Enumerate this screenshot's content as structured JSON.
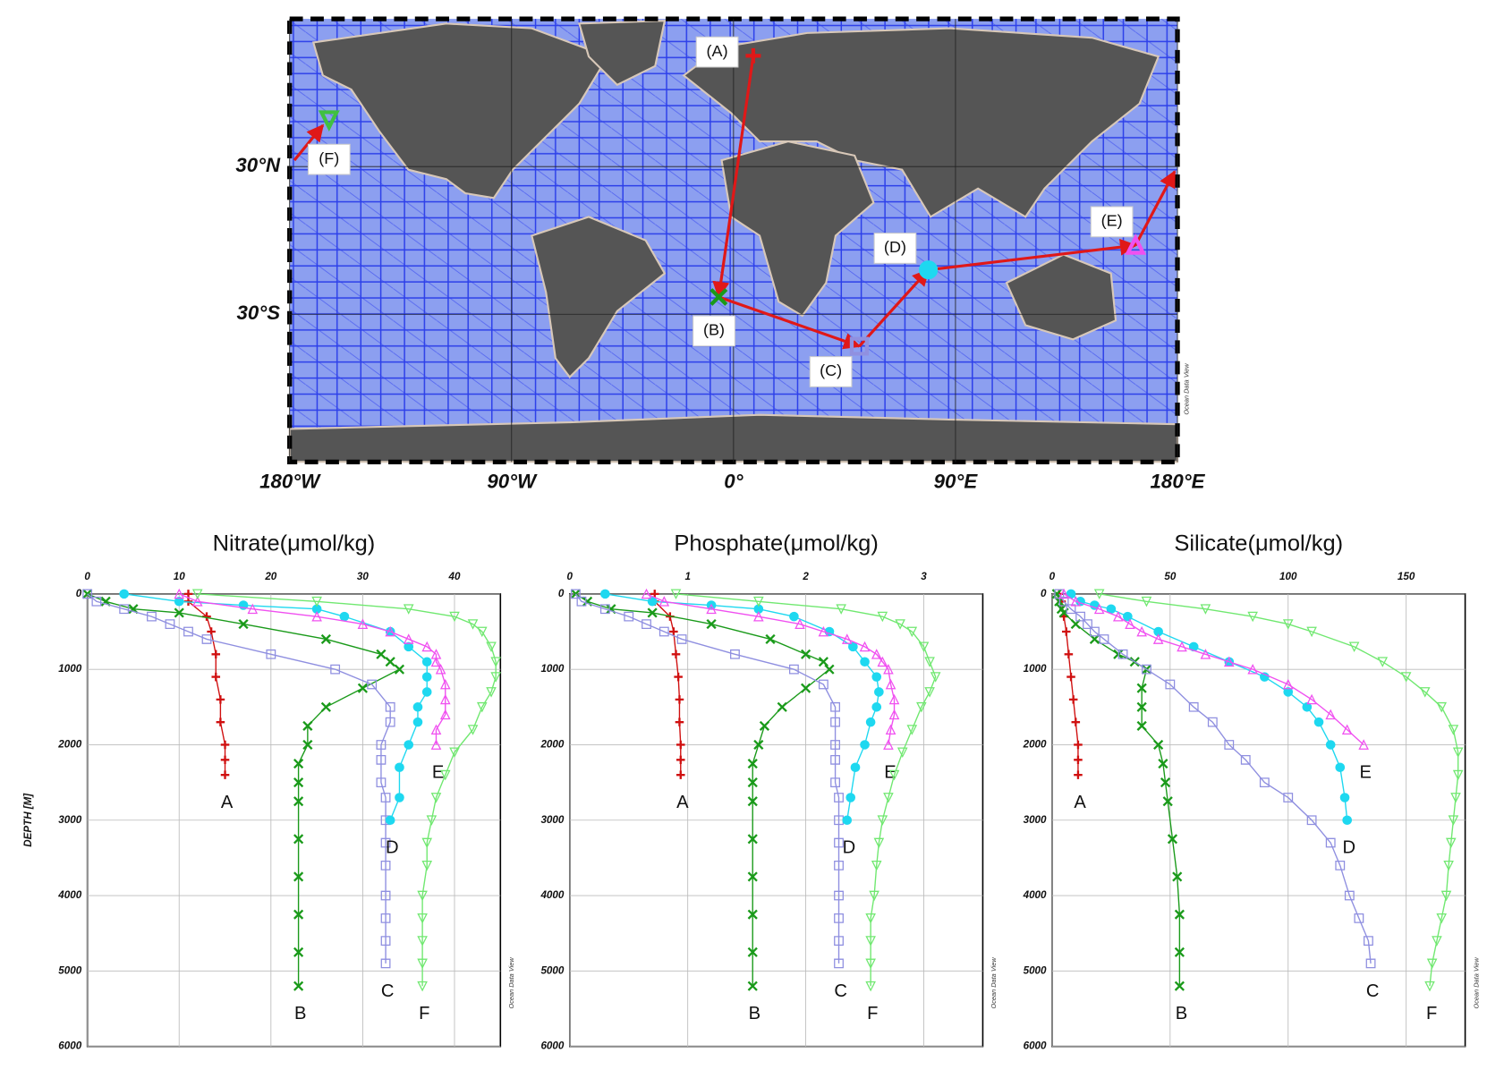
{
  "map": {
    "xlim": [
      -180,
      180
    ],
    "ylim": [
      -90,
      90
    ],
    "lon_ticks": [
      {
        "value": -180,
        "label": "180°W"
      },
      {
        "value": -90,
        "label": "90°W"
      },
      {
        "value": 0,
        "label": "0°"
      },
      {
        "value": 90,
        "label": "90°E"
      },
      {
        "value": 180,
        "label": "180°E"
      }
    ],
    "lat_ticks": [
      {
        "value": 30,
        "label": "30°N"
      },
      {
        "value": -30,
        "label": "30°S"
      }
    ],
    "watermark": "Ocean Data View",
    "stations": [
      {
        "label": "(A)",
        "lon": 8,
        "lat": 75,
        "color": "#e01818",
        "marker": "plus"
      },
      {
        "label": "(B)",
        "lon": -6,
        "lat": -23,
        "color": "#1a9a1a",
        "marker": "x"
      },
      {
        "label": "(C)",
        "lon": 51,
        "lat": -43,
        "color": "#9090e0",
        "marker": "square"
      },
      {
        "label": "(D)",
        "lon": 79,
        "lat": -12,
        "color": "#1ed8f0",
        "marker": "circle"
      },
      {
        "label": "(E)",
        "lon": 163,
        "lat": -2,
        "color": "#f050f0",
        "marker": "triangle"
      },
      {
        "label": "(F)",
        "lon": -164,
        "lat": 49,
        "color": "#40c040",
        "marker": "triangle-down"
      }
    ]
  },
  "chart_data": [
    {
      "type": "line",
      "title": "Nitrate(μmol/kg)",
      "xlim": [
        0,
        45
      ],
      "xticks": [
        0,
        10,
        20,
        30,
        40
      ],
      "ylim": [
        0,
        6000
      ],
      "y_inverted": true,
      "yticks": [
        0,
        1000,
        2000,
        3000,
        4000,
        5000,
        6000
      ],
      "ylabel": "DEPTH [M]",
      "grid": true,
      "watermark": "Ocean Data View",
      "series": [
        {
          "name": "A",
          "color": "#d01010",
          "marker": "plus",
          "x": [
            11,
            11,
            13,
            13.5,
            14,
            14,
            14.5,
            14.5,
            15,
            15,
            15
          ],
          "y": [
            0,
            100,
            300,
            500,
            800,
            1100,
            1400,
            1700,
            2000,
            2200,
            2400
          ]
        },
        {
          "name": "B",
          "color": "#1a9a1a",
          "marker": "x",
          "x": [
            0,
            2,
            5,
            10,
            17,
            26,
            32,
            33,
            34,
            30,
            26,
            24,
            24,
            23,
            23,
            23,
            23,
            23,
            23,
            23,
            23
          ],
          "y": [
            0,
            100,
            200,
            250,
            400,
            600,
            800,
            900,
            1000,
            1250,
            1500,
            1750,
            2000,
            2250,
            2500,
            2750,
            3250,
            3750,
            4250,
            4750,
            5200
          ]
        },
        {
          "name": "C",
          "color": "#8f8fe0",
          "marker": "square",
          "x": [
            0,
            1,
            4,
            7,
            9,
            11,
            13,
            20,
            27,
            31,
            33,
            33,
            32,
            32,
            32,
            32.5,
            32.5,
            32.5,
            32.5,
            32.5,
            32.5,
            32.5,
            32.5
          ],
          "y": [
            0,
            100,
            200,
            300,
            400,
            500,
            600,
            800,
            1000,
            1200,
            1500,
            1700,
            2000,
            2200,
            2500,
            2700,
            3000,
            3300,
            3600,
            4000,
            4300,
            4600,
            4900
          ]
        },
        {
          "name": "D",
          "color": "#1ed8f0",
          "marker": "circle",
          "x": [
            4,
            10,
            17,
            25,
            28,
            33,
            35,
            37,
            37,
            37,
            36,
            36,
            35,
            34,
            34,
            33
          ],
          "y": [
            0,
            100,
            150,
            200,
            300,
            500,
            700,
            900,
            1100,
            1300,
            1500,
            1700,
            2000,
            2300,
            2700,
            3000
          ]
        },
        {
          "name": "E",
          "color": "#f050f0",
          "marker": "triangle",
          "x": [
            10,
            12,
            18,
            25,
            30,
            33,
            35,
            37,
            38,
            38,
            38.5,
            39,
            39,
            39,
            38,
            38
          ],
          "y": [
            0,
            100,
            200,
            300,
            400,
            500,
            600,
            700,
            800,
            900,
            1000,
            1200,
            1400,
            1600,
            1800,
            2000
          ]
        },
        {
          "name": "F",
          "color": "#70e870",
          "marker": "triangle-down",
          "x": [
            12,
            25,
            35,
            40,
            42,
            43,
            44,
            44.5,
            44.5,
            44,
            43,
            42,
            40,
            39,
            38,
            37.5,
            37,
            37,
            36.5,
            36.5,
            36.5,
            36.5,
            36.5
          ],
          "y": [
            0,
            100,
            200,
            300,
            400,
            500,
            700,
            900,
            1100,
            1300,
            1500,
            1800,
            2100,
            2400,
            2700,
            3000,
            3300,
            3600,
            4000,
            4300,
            4600,
            4900,
            5200
          ]
        }
      ]
    },
    {
      "type": "line",
      "title": "Phosphate(μmol/kg)",
      "xlim": [
        0,
        3.5
      ],
      "xticks": [
        0,
        1,
        2,
        3
      ],
      "ylim": [
        0,
        6000
      ],
      "y_inverted": true,
      "yticks": [
        0,
        1000,
        2000,
        3000,
        4000,
        5000,
        6000
      ],
      "grid": true,
      "watermark": "Ocean Data View",
      "series": [
        {
          "name": "A",
          "color": "#d01010",
          "marker": "plus",
          "x": [
            0.72,
            0.72,
            0.85,
            0.88,
            0.9,
            0.92,
            0.93,
            0.93,
            0.94,
            0.94,
            0.94
          ],
          "y": [
            0,
            100,
            300,
            500,
            800,
            1100,
            1400,
            1700,
            2000,
            2200,
            2400
          ]
        },
        {
          "name": "B",
          "color": "#1a9a1a",
          "marker": "x",
          "x": [
            0.05,
            0.15,
            0.35,
            0.7,
            1.2,
            1.7,
            2.0,
            2.15,
            2.2,
            2.0,
            1.8,
            1.65,
            1.6,
            1.55,
            1.55,
            1.55,
            1.55,
            1.55,
            1.55,
            1.55,
            1.55
          ],
          "y": [
            0,
            100,
            200,
            250,
            400,
            600,
            800,
            900,
            1000,
            1250,
            1500,
            1750,
            2000,
            2250,
            2500,
            2750,
            3250,
            3750,
            4250,
            4750,
            5200
          ]
        },
        {
          "name": "C",
          "color": "#8f8fe0",
          "marker": "square",
          "x": [
            0.05,
            0.1,
            0.3,
            0.5,
            0.65,
            0.8,
            0.95,
            1.4,
            1.9,
            2.15,
            2.25,
            2.25,
            2.25,
            2.25,
            2.25,
            2.28,
            2.28,
            2.28,
            2.28,
            2.28,
            2.28,
            2.28,
            2.28
          ],
          "y": [
            0,
            100,
            200,
            300,
            400,
            500,
            600,
            800,
            1000,
            1200,
            1500,
            1700,
            2000,
            2200,
            2500,
            2700,
            3000,
            3300,
            3600,
            4000,
            4300,
            4600,
            4900
          ]
        },
        {
          "name": "D",
          "color": "#1ed8f0",
          "marker": "circle",
          "x": [
            0.3,
            0.7,
            1.2,
            1.6,
            1.9,
            2.2,
            2.4,
            2.5,
            2.6,
            2.62,
            2.6,
            2.55,
            2.5,
            2.42,
            2.38,
            2.35
          ],
          "y": [
            0,
            100,
            150,
            200,
            300,
            500,
            700,
            900,
            1100,
            1300,
            1500,
            1700,
            2000,
            2300,
            2700,
            3000
          ]
        },
        {
          "name": "E",
          "color": "#f050f0",
          "marker": "triangle",
          "x": [
            0.65,
            0.8,
            1.2,
            1.6,
            1.95,
            2.15,
            2.35,
            2.5,
            2.6,
            2.65,
            2.7,
            2.72,
            2.75,
            2.75,
            2.72,
            2.7
          ],
          "y": [
            0,
            100,
            200,
            300,
            400,
            500,
            600,
            700,
            800,
            900,
            1000,
            1200,
            1400,
            1600,
            1800,
            2000
          ]
        },
        {
          "name": "F",
          "color": "#70e870",
          "marker": "triangle-down",
          "x": [
            0.9,
            1.6,
            2.3,
            2.65,
            2.8,
            2.9,
            3.0,
            3.05,
            3.1,
            3.05,
            2.98,
            2.9,
            2.82,
            2.75,
            2.7,
            2.65,
            2.62,
            2.6,
            2.58,
            2.55,
            2.55,
            2.55,
            2.55
          ],
          "y": [
            0,
            100,
            200,
            300,
            400,
            500,
            700,
            900,
            1100,
            1300,
            1500,
            1800,
            2100,
            2400,
            2700,
            3000,
            3300,
            3600,
            4000,
            4300,
            4600,
            4900,
            5200
          ]
        }
      ]
    },
    {
      "type": "line",
      "title": "Silicate(μmol/kg)",
      "xlim": [
        0,
        175
      ],
      "xticks": [
        0,
        50,
        100,
        150
      ],
      "ylim": [
        0,
        6000
      ],
      "y_inverted": true,
      "yticks": [
        0,
        1000,
        2000,
        3000,
        4000,
        5000,
        6000
      ],
      "grid": true,
      "watermark": "Ocean Data View",
      "series": [
        {
          "name": "A",
          "color": "#d01010",
          "marker": "plus",
          "x": [
            3,
            4,
            5,
            6,
            7,
            8,
            9,
            10,
            11,
            11,
            11
          ],
          "y": [
            0,
            100,
            300,
            500,
            800,
            1100,
            1400,
            1700,
            2000,
            2200,
            2400
          ]
        },
        {
          "name": "B",
          "color": "#1a9a1a",
          "marker": "x",
          "x": [
            2,
            3,
            4,
            5,
            10,
            18,
            28,
            35,
            40,
            38,
            38,
            38,
            45,
            47,
            48,
            49,
            51,
            53,
            54,
            54,
            54
          ],
          "y": [
            0,
            100,
            200,
            250,
            400,
            600,
            800,
            900,
            1000,
            1250,
            1500,
            1750,
            2000,
            2250,
            2500,
            2750,
            3250,
            3750,
            4250,
            4750,
            5200
          ]
        },
        {
          "name": "C",
          "color": "#8f8fe0",
          "marker": "square",
          "x": [
            3,
            5,
            8,
            12,
            15,
            18,
            22,
            30,
            40,
            50,
            60,
            68,
            75,
            82,
            90,
            100,
            110,
            118,
            122,
            126,
            130,
            134,
            135
          ],
          "y": [
            0,
            100,
            200,
            300,
            400,
            500,
            600,
            800,
            1000,
            1200,
            1500,
            1700,
            2000,
            2200,
            2500,
            2700,
            3000,
            3300,
            3600,
            4000,
            4300,
            4600,
            4900
          ]
        },
        {
          "name": "D",
          "color": "#1ed8f0",
          "marker": "circle",
          "x": [
            8,
            12,
            18,
            25,
            32,
            45,
            60,
            75,
            90,
            100,
            108,
            113,
            118,
            122,
            124,
            125
          ],
          "y": [
            0,
            100,
            150,
            200,
            300,
            500,
            700,
            900,
            1100,
            1300,
            1500,
            1700,
            2000,
            2300,
            2700,
            3000
          ]
        },
        {
          "name": "E",
          "color": "#f050f0",
          "marker": "triangle",
          "x": [
            5,
            10,
            20,
            28,
            33,
            38,
            45,
            55,
            65,
            75,
            85,
            100,
            110,
            118,
            125,
            132
          ],
          "y": [
            0,
            100,
            200,
            300,
            400,
            500,
            600,
            700,
            800,
            900,
            1000,
            1200,
            1400,
            1600,
            1800,
            2000
          ]
        },
        {
          "name": "F",
          "color": "#70e870",
          "marker": "triangle-down",
          "x": [
            20,
            40,
            65,
            85,
            100,
            110,
            128,
            140,
            150,
            158,
            165,
            170,
            172,
            172,
            171,
            170,
            169,
            168,
            167,
            165,
            163,
            161,
            160
          ],
          "y": [
            0,
            100,
            200,
            300,
            400,
            500,
            700,
            900,
            1100,
            1300,
            1500,
            1800,
            2100,
            2400,
            2700,
            3000,
            3300,
            3600,
            4000,
            4300,
            4600,
            4900,
            5200
          ]
        }
      ]
    }
  ]
}
